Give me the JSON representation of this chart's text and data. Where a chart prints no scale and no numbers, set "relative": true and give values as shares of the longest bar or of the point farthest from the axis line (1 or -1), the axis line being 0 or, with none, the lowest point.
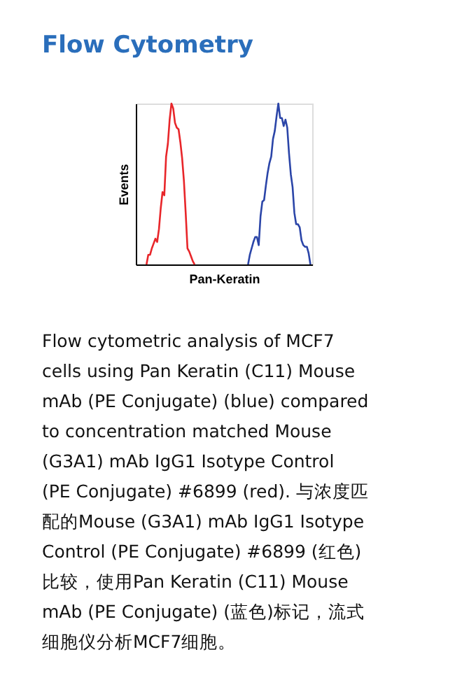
{
  "chart_data": {
    "type": "line",
    "title": "Flow Cytometry",
    "xlabel": "Pan-Keratin",
    "ylabel": "Events",
    "relative": true,
    "tick_labels": false,
    "grid": false,
    "marker": "none",
    "line_style": "solid",
    "categories": [
      null,
      null,
      null,
      null,
      null,
      null,
      null,
      null,
      null,
      null,
      null,
      null,
      null,
      null,
      null,
      null,
      null,
      null,
      null,
      null,
      null,
      null,
      null,
      null,
      null,
      null,
      null,
      null,
      null,
      null,
      null,
      null,
      null,
      null,
      null,
      null,
      null,
      null,
      null,
      null,
      null,
      null,
      null,
      null,
      null,
      null,
      null,
      null,
      null,
      null,
      null,
      null,
      null,
      null,
      null,
      null,
      null,
      null,
      null,
      null,
      null,
      null,
      null,
      null,
      null,
      null,
      null,
      null,
      null,
      null,
      null,
      null,
      null,
      null,
      null,
      null,
      null,
      null,
      null,
      null,
      null,
      null,
      null,
      null,
      null,
      null,
      null,
      null,
      null,
      null,
      null,
      null,
      null,
      null,
      null,
      null,
      null,
      null,
      null,
      null
    ],
    "series": [
      {
        "color": "#e8262a",
        "values": [
          null,
          null,
          null,
          null,
          null,
          null,
          0,
          0.06,
          0.06,
          0.1,
          0.13,
          0.16,
          0.14,
          0.22,
          0.35,
          0.45,
          0.43,
          0.67,
          0.75,
          0.9,
          1.0,
          0.97,
          0.88,
          0.85,
          0.84,
          0.76,
          0.66,
          0.52,
          0.32,
          0.1,
          0.08,
          0.05,
          0.02,
          0,
          null,
          null,
          null,
          null,
          null,
          null,
          null,
          null,
          null,
          null,
          null,
          null,
          null,
          null,
          null,
          null,
          null,
          null,
          null,
          null,
          null,
          null,
          null,
          null,
          null,
          null,
          null,
          null,
          null,
          null,
          null,
          null,
          null,
          null,
          null,
          null,
          null,
          null,
          null,
          null,
          null,
          null,
          null,
          null,
          null,
          null,
          null,
          null,
          null,
          null,
          null,
          null,
          null,
          null,
          null,
          null,
          null,
          null,
          null,
          null,
          null,
          null,
          null,
          null,
          null,
          null
        ]
      },
      {
        "color": "#2b45a8",
        "values": [
          null,
          null,
          null,
          null,
          null,
          null,
          null,
          null,
          null,
          null,
          null,
          null,
          null,
          null,
          null,
          null,
          null,
          null,
          null,
          null,
          null,
          null,
          null,
          null,
          null,
          null,
          null,
          null,
          null,
          null,
          null,
          null,
          null,
          null,
          null,
          null,
          null,
          null,
          null,
          null,
          null,
          null,
          null,
          null,
          null,
          null,
          null,
          null,
          null,
          null,
          null,
          null,
          null,
          null,
          null,
          null,
          null,
          null,
          null,
          null,
          null,
          null,
          null,
          0,
          0.06,
          0.1,
          0.14,
          0.17,
          0.17,
          0.12,
          0.3,
          0.39,
          0.4,
          0.49,
          0.57,
          0.63,
          0.67,
          0.78,
          0.83,
          0.92,
          1.0,
          0.91,
          0.91,
          0.86,
          0.9,
          0.85,
          0.69,
          0.56,
          0.48,
          0.32,
          0.25,
          0.25,
          0.23,
          0.15,
          0.12,
          0.11,
          0.11,
          0.07,
          0,
          null
        ]
      }
    ],
    "annotations": [
      "Flow cytometric analysis of MCF7",
      "cells using Pan Keratin (C11) Mouse",
      "mAb (PE Conjugate) (blue) compared",
      "to concentration matched Mouse",
      "(G3A1) mAb IgG1 Isotype Control",
      "(PE Conjugate) #6899 (red). 与浓度匹",
      "配的Mouse (G3A1) mAb IgG1 Isotype",
      "Control (PE Conjugate) #6899 (红色)",
      "比较，使用Pan Keratin (C11) Mouse",
      "mAb (PE Conjugate) (蓝色)标记，流式",
      "细胞仪分析MCF7细胞。"
    ]
  }
}
